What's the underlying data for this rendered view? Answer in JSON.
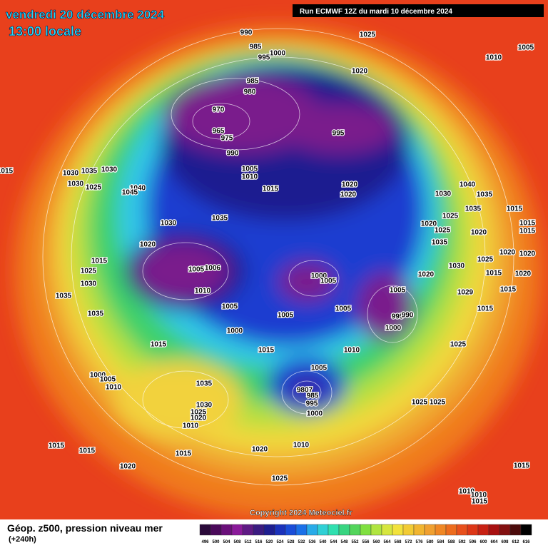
{
  "header": {
    "date": "vendredi 20 décembre 2024",
    "time": "13:00 locale",
    "run": "Run ECMWF 12Z du mardi 10 décembre 2024"
  },
  "footer": {
    "copyright": "Copyright 2024 Meteociel.fr",
    "legend_title": "Géop. z500, pression niveau mer",
    "lead": "(+240h)"
  },
  "legend": {
    "labels": [
      "496",
      "500",
      "504",
      "508",
      "512",
      "516",
      "520",
      "524",
      "528",
      "532",
      "536",
      "540",
      "544",
      "548",
      "552",
      "556",
      "560",
      "564",
      "568",
      "572",
      "576",
      "580",
      "584",
      "588",
      "592",
      "596",
      "600",
      "604",
      "608",
      "612",
      "616"
    ]
  },
  "isobar_labels": [
    "990",
    "1025",
    "1005",
    "985",
    "1000",
    "995",
    "1010",
    "1020",
    "985",
    "980",
    "970",
    "965",
    "975",
    "995",
    "990",
    "1005",
    "1010",
    "1015",
    "1015",
    "1030",
    "1035",
    "1030",
    "1030",
    "1025",
    "1040",
    "1045",
    "1020",
    "1020",
    "1040",
    "1030",
    "1035",
    "1025",
    "1035",
    "1015",
    "1035",
    "1030",
    "1025",
    "1020",
    "1015",
    "1020",
    "1015",
    "1035",
    "1020",
    "1015",
    "1005",
    "1006",
    "1000",
    "1005",
    "1020",
    "1020",
    "1025",
    "1030",
    "1020",
    "1030",
    "1025",
    "1015",
    "1020",
    "1010",
    "1005",
    "995",
    "990",
    "1000",
    "1035",
    "1005",
    "1005",
    "1005",
    "1029",
    "1015",
    "1035",
    "1015",
    "1000",
    "1015",
    "1010",
    "1015",
    "1025",
    "1005",
    "1035",
    "1000",
    "1005",
    "1010",
    "1030",
    "1025",
    "1020",
    "1010",
    "9807",
    "985",
    "995",
    "1000",
    "1025",
    "1025",
    "1015",
    "1015",
    "1020",
    "1010",
    "1020",
    "1015",
    "1025",
    "1015",
    "1010",
    "1010",
    "1015"
  ]
}
